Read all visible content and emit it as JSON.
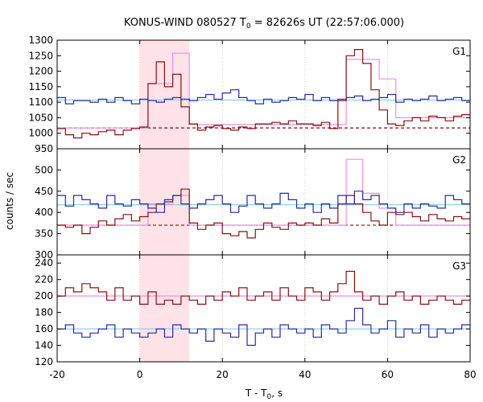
{
  "chart_data": {
    "type": "line",
    "title_pre": "KONUS-WIND 080527 T",
    "title_sub": "0",
    "title_post": " = 82626s UT (22:57:06.000)",
    "ylabel": "counts / sec",
    "xlabel_pre": "T - T",
    "xlabel_sub": "0",
    "xlabel_post": ", s",
    "xlim": [
      -20,
      80
    ],
    "x_ticks": [
      -20,
      0,
      20,
      40,
      60,
      80
    ],
    "shade": [
      0,
      12
    ],
    "colors": {
      "series_a": "#2a2aa6",
      "series_b": "#8b0f12",
      "fit_a": "#87cbea",
      "fit_b": "#f08fd6",
      "bg": "#8b0f12",
      "shade": "#ffe3e8",
      "grid": "#c8c8c8"
    },
    "panels": [
      {
        "label": "G1",
        "ylim": [
          950,
          1300
        ],
        "y_ticks": [
          950,
          1000,
          1050,
          1100,
          1150,
          1200,
          1250,
          1300
        ],
        "fit_a_value": 1107,
        "bg_value": 1017,
        "series_a": {
          "x": [
            -20,
            -18,
            -16,
            -14,
            -12,
            -10,
            -8,
            -6,
            -4,
            -2,
            0,
            2,
            4,
            6,
            8,
            10,
            12,
            14,
            16,
            18,
            20,
            22,
            24,
            26,
            28,
            30,
            32,
            34,
            36,
            38,
            40,
            42,
            44,
            46,
            48,
            50,
            52,
            54,
            56,
            58,
            60,
            62,
            64,
            66,
            68,
            70,
            72,
            74,
            76,
            78,
            80
          ],
          "y": [
            1115,
            1095,
            1105,
            1105,
            1100,
            1110,
            1100,
            1115,
            1105,
            1095,
            1110,
            1105,
            1100,
            1110,
            1115,
            1110,
            1105,
            1115,
            1125,
            1110,
            1130,
            1140,
            1115,
            1105,
            1095,
            1110,
            1100,
            1105,
            1115,
            1110,
            1125,
            1105,
            1115,
            1105,
            1110,
            1115,
            1120,
            1105,
            1110,
            1115,
            1125,
            1100,
            1110,
            1105,
            1110,
            1120,
            1105,
            1110,
            1115,
            1105,
            1100
          ]
        },
        "series_b": {
          "x": [
            -20,
            -18,
            -16,
            -14,
            -12,
            -10,
            -8,
            -6,
            -4,
            -2,
            0,
            2,
            4,
            6,
            8,
            10,
            12,
            14,
            16,
            18,
            20,
            22,
            24,
            26,
            28,
            30,
            32,
            34,
            36,
            38,
            40,
            42,
            44,
            46,
            48,
            50,
            52,
            54,
            56,
            58,
            60,
            62,
            64,
            66,
            68,
            70,
            72,
            74,
            76,
            78,
            80
          ],
          "y": [
            1015,
            995,
            985,
            1000,
            995,
            1005,
            1010,
            995,
            1010,
            1015,
            1020,
            1160,
            1230,
            1150,
            1190,
            1085,
            1030,
            1010,
            1020,
            1025,
            1015,
            1010,
            1020,
            1015,
            1030,
            1030,
            1035,
            1030,
            1040,
            1030,
            1030,
            1025,
            1035,
            1015,
            1105,
            1250,
            1270,
            1225,
            1140,
            1075,
            1030,
            1025,
            1040,
            1050,
            1040,
            1055,
            1050,
            1040,
            1055,
            1060,
            1055
          ]
        },
        "fit_b": {
          "x": [
            -20,
            0,
            2,
            6,
            8,
            12,
            46,
            50,
            54,
            58,
            62,
            80
          ],
          "y": [
            1017,
            1017,
            1160,
            1160,
            1258,
            1028,
            1028,
            1238,
            1238,
            1175,
            1050,
            1040
          ]
        }
      },
      {
        "label": "G2",
        "ylim": [
          300,
          550
        ],
        "y_ticks": [
          300,
          350,
          400,
          450,
          500
        ],
        "fit_a_value": 418,
        "bg_value": 370,
        "series_a": {
          "x": [
            -20,
            -18,
            -16,
            -14,
            -12,
            -10,
            -8,
            -6,
            -4,
            -2,
            0,
            2,
            4,
            6,
            8,
            10,
            12,
            14,
            16,
            18,
            20,
            22,
            24,
            26,
            28,
            30,
            32,
            34,
            36,
            38,
            40,
            42,
            44,
            46,
            48,
            50,
            52,
            54,
            56,
            58,
            60,
            62,
            64,
            66,
            68,
            70,
            72,
            74,
            76,
            78,
            80
          ],
          "y": [
            440,
            415,
            440,
            430,
            420,
            410,
            440,
            420,
            415,
            430,
            420,
            410,
            400,
            430,
            440,
            420,
            410,
            420,
            430,
            440,
            420,
            400,
            415,
            440,
            420,
            410,
            420,
            445,
            430,
            410,
            420,
            400,
            420,
            410,
            440,
            420,
            450,
            430,
            440,
            420,
            410,
            400,
            420,
            410,
            420,
            415,
            410,
            440,
            430,
            420,
            400
          ]
        },
        "series_b": {
          "x": [
            -20,
            -18,
            -16,
            -14,
            -12,
            -10,
            -8,
            -6,
            -4,
            -2,
            0,
            2,
            4,
            6,
            8,
            10,
            12,
            14,
            16,
            18,
            20,
            22,
            24,
            26,
            28,
            30,
            32,
            34,
            36,
            38,
            40,
            42,
            44,
            46,
            48,
            50,
            52,
            54,
            56,
            58,
            60,
            62,
            64,
            66,
            68,
            70,
            72,
            74,
            76,
            78,
            80
          ],
          "y": [
            370,
            365,
            370,
            350,
            365,
            380,
            370,
            385,
            395,
            380,
            390,
            400,
            420,
            425,
            440,
            455,
            375,
            360,
            370,
            375,
            350,
            345,
            355,
            340,
            360,
            375,
            365,
            360,
            375,
            370,
            375,
            370,
            385,
            375,
            420,
            440,
            420,
            400,
            380,
            370,
            400,
            395,
            400,
            390,
            380,
            395,
            385,
            380,
            390,
            385,
            400
          ]
        },
        "fit_b": {
          "x": [
            -20,
            0,
            2,
            6,
            8,
            12,
            46,
            50,
            54,
            58,
            62,
            80
          ],
          "y": [
            370,
            370,
            420,
            420,
            440,
            370,
            370,
            525,
            445,
            410,
            370,
            370
          ]
        }
      },
      {
        "label": "G3",
        "ylim": [
          120,
          250
        ],
        "y_ticks": [
          120,
          140,
          160,
          180,
          200,
          220,
          240
        ],
        "fit_a_value": 160,
        "fit_b_value": 200,
        "series_a": {
          "x": [
            -20,
            -18,
            -16,
            -14,
            -12,
            -10,
            -8,
            -6,
            -4,
            -2,
            0,
            2,
            4,
            6,
            8,
            10,
            12,
            14,
            16,
            18,
            20,
            22,
            24,
            26,
            28,
            30,
            32,
            34,
            36,
            38,
            40,
            42,
            44,
            46,
            48,
            50,
            52,
            54,
            56,
            58,
            60,
            62,
            64,
            66,
            68,
            70,
            72,
            74,
            76,
            78,
            80
          ],
          "y": [
            160,
            165,
            155,
            150,
            155,
            160,
            165,
            150,
            160,
            155,
            150,
            155,
            160,
            150,
            165,
            160,
            155,
            160,
            145,
            160,
            155,
            150,
            165,
            140,
            155,
            160,
            150,
            165,
            160,
            155,
            160,
            150,
            165,
            160,
            155,
            170,
            185,
            165,
            155,
            160,
            170,
            150,
            160,
            155,
            165,
            150,
            160,
            155,
            160,
            165,
            160
          ]
        },
        "series_b": {
          "x": [
            -20,
            -18,
            -16,
            -14,
            -12,
            -10,
            -8,
            -6,
            -4,
            -2,
            0,
            2,
            4,
            6,
            8,
            10,
            12,
            14,
            16,
            18,
            20,
            22,
            24,
            26,
            28,
            30,
            32,
            34,
            36,
            38,
            40,
            42,
            44,
            46,
            48,
            50,
            52,
            54,
            56,
            58,
            60,
            62,
            64,
            66,
            68,
            70,
            72,
            74,
            76,
            78,
            80
          ],
          "y": [
            200,
            210,
            205,
            215,
            210,
            205,
            195,
            210,
            195,
            200,
            190,
            205,
            190,
            195,
            190,
            200,
            195,
            190,
            200,
            195,
            205,
            200,
            210,
            195,
            200,
            205,
            195,
            210,
            200,
            195,
            210,
            205,
            195,
            205,
            215,
            230,
            205,
            195,
            200,
            190,
            200,
            205,
            195,
            200,
            190,
            195,
            200,
            195,
            190,
            195,
            195
          ]
        }
      }
    ]
  }
}
